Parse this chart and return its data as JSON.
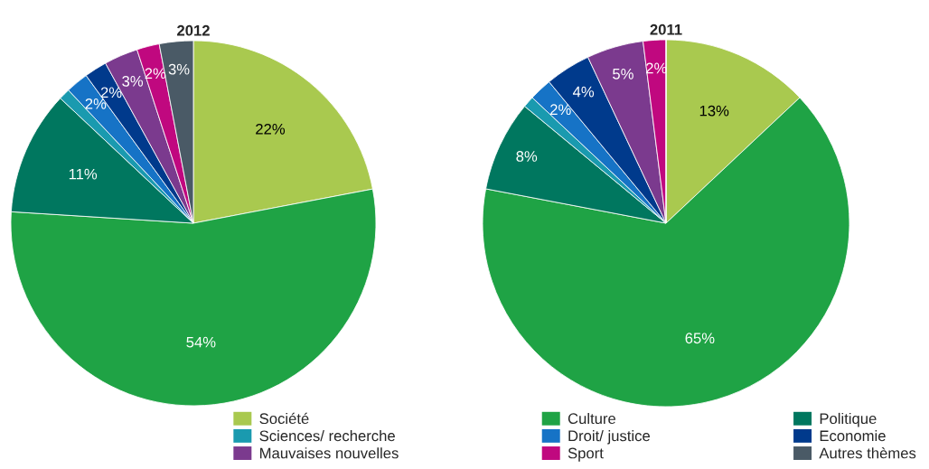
{
  "chart_data": [
    {
      "type": "pie",
      "title": "2012",
      "categories": [
        "Société",
        "Culture",
        "Politique",
        "Sciences/ recherche",
        "Droit/ justice",
        "Economie",
        "Mauvaises nouvelles",
        "Sport",
        "Autres thèmes"
      ],
      "values": [
        22,
        54,
        11,
        1,
        2,
        2,
        3,
        2,
        3
      ],
      "value_labels": [
        "22%",
        "54%",
        "11%",
        null,
        "2%",
        "2%",
        "3%",
        "2%",
        "3%"
      ],
      "colors": [
        "#a9c94f",
        "#1fa345",
        "#00775f",
        "#1a9aaf",
        "#1673c6",
        "#003a8c",
        "#7b3a8e",
        "#c0087f",
        "#4a5a66"
      ],
      "legend": "bottom"
    },
    {
      "type": "pie",
      "title": "2011",
      "values": [
        13,
        65,
        8,
        1,
        2,
        4,
        5,
        2,
        0
      ],
      "value_labels": [
        "13%",
        "65%",
        "8%",
        null,
        "2%",
        "4%",
        "5%",
        "2%",
        null
      ],
      "colors": [
        "#a9c94f",
        "#1fa345",
        "#00775f",
        "#1a9aaf",
        "#1673c6",
        "#003a8c",
        "#7b3a8e",
        "#c0087f",
        "#4a5a66"
      ]
    }
  ]
}
